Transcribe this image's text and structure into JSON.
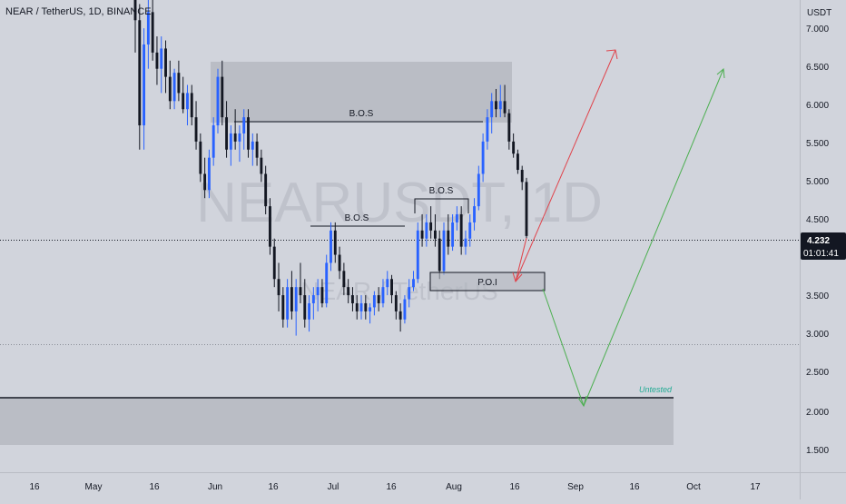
{
  "header": {
    "title": "NEAR / TetherUS, 1D, BINANCE"
  },
  "watermark": {
    "main": "NEARUSDT, 1D",
    "sub": "NEAR / TetherUS"
  },
  "y_axis": {
    "unit": "USDT",
    "ticks": [
      "7.000",
      "6.500",
      "6.000",
      "5.500",
      "5.000",
      "4.500",
      "4.000",
      "3.500",
      "3.000",
      "2.500",
      "2.000",
      "1.500"
    ]
  },
  "x_axis": {
    "ticks": [
      "16",
      "May",
      "16",
      "Jun",
      "16",
      "Jul",
      "16",
      "Aug",
      "16",
      "Sep",
      "16",
      "Oct",
      "17"
    ]
  },
  "price_tag": {
    "price": "4.232",
    "timer": "01:01:41",
    "color": "#131722"
  },
  "annotations": {
    "bos_1": "B.O.S",
    "bos_2": "B.O.S",
    "bos_3": "B.O.S",
    "poi": "P.O.I",
    "untested": "Untested"
  },
  "colors": {
    "up": "#2962ff",
    "down": "#131722",
    "zone": "#b2b5be",
    "red_arrow": "#e0434b",
    "green_arrow": "#4caf50",
    "text_green": "#22ab94"
  },
  "chart_data": {
    "type": "candlestick",
    "symbol": "NEARUSDT",
    "timeframe": "1D",
    "exchange": "BINANCE",
    "ylim": [
      1.3,
      7.15
    ],
    "grid": false,
    "last_price": 4.232,
    "candles": [
      [
        7.3,
        7.6,
        6.5,
        6.9
      ],
      [
        6.9,
        7.1,
        5.3,
        5.6
      ],
      [
        5.6,
        6.8,
        5.3,
        6.6
      ],
      [
        6.6,
        7.2,
        6.3,
        7.0
      ],
      [
        7.0,
        7.3,
        6.4,
        6.5
      ],
      [
        6.5,
        6.7,
        6.1,
        6.3
      ],
      [
        6.3,
        6.7,
        6.0,
        6.55
      ],
      [
        6.55,
        6.65,
        6.0,
        6.2
      ],
      [
        6.2,
        6.4,
        5.8,
        5.9
      ],
      [
        5.9,
        6.3,
        5.8,
        6.25
      ],
      [
        6.25,
        6.4,
        5.9,
        6.0
      ],
      [
        6.0,
        6.2,
        5.75,
        5.8
      ],
      [
        5.8,
        6.1,
        5.6,
        6.0
      ],
      [
        6.0,
        6.1,
        5.6,
        5.7
      ],
      [
        5.7,
        5.9,
        5.3,
        5.4
      ],
      [
        5.4,
        5.5,
        4.9,
        5.0
      ],
      [
        5.0,
        5.2,
        4.7,
        4.8
      ],
      [
        4.8,
        5.3,
        4.7,
        5.2
      ],
      [
        5.2,
        5.7,
        5.1,
        5.6
      ],
      [
        5.6,
        6.3,
        5.5,
        6.2
      ],
      [
        6.2,
        6.4,
        5.6,
        5.7
      ],
      [
        5.7,
        5.9,
        5.2,
        5.3
      ],
      [
        5.3,
        5.6,
        5.1,
        5.5
      ],
      [
        5.5,
        5.8,
        5.3,
        5.4
      ],
      [
        5.4,
        5.6,
        5.15,
        5.5
      ],
      [
        5.5,
        5.8,
        5.3,
        5.7
      ],
      [
        5.7,
        5.8,
        5.2,
        5.3
      ],
      [
        5.3,
        5.5,
        5.1,
        5.4
      ],
      [
        5.4,
        5.5,
        5.1,
        5.2
      ],
      [
        5.2,
        5.3,
        4.9,
        5.0
      ],
      [
        5.0,
        5.1,
        4.5,
        4.6
      ],
      [
        4.6,
        4.7,
        4.0,
        4.1
      ],
      [
        4.1,
        4.2,
        3.6,
        3.7
      ],
      [
        3.7,
        3.9,
        3.3,
        3.5
      ],
      [
        3.5,
        3.6,
        3.1,
        3.2
      ],
      [
        3.2,
        3.7,
        3.1,
        3.6
      ],
      [
        3.6,
        3.8,
        3.2,
        3.3
      ],
      [
        3.3,
        3.7,
        3.0,
        3.6
      ],
      [
        3.6,
        3.9,
        3.4,
        3.5
      ],
      [
        3.5,
        3.7,
        3.1,
        3.2
      ],
      [
        3.2,
        3.5,
        3.05,
        3.4
      ],
      [
        3.4,
        3.6,
        3.2,
        3.5
      ],
      [
        3.5,
        3.7,
        3.3,
        3.6
      ],
      [
        3.6,
        3.7,
        3.35,
        3.4
      ],
      [
        3.4,
        4.0,
        3.35,
        3.9
      ],
      [
        3.9,
        4.4,
        3.8,
        4.3
      ],
      [
        4.3,
        4.4,
        3.9,
        4.0
      ],
      [
        4.0,
        4.1,
        3.7,
        3.8
      ],
      [
        3.8,
        3.9,
        3.5,
        3.6
      ],
      [
        3.6,
        3.7,
        3.4,
        3.5
      ],
      [
        3.5,
        3.6,
        3.3,
        3.4
      ],
      [
        3.4,
        3.5,
        3.2,
        3.3
      ],
      [
        3.3,
        3.5,
        3.2,
        3.4
      ],
      [
        3.4,
        3.5,
        3.2,
        3.3
      ],
      [
        3.3,
        3.4,
        3.15,
        3.35
      ],
      [
        3.35,
        3.55,
        3.25,
        3.5
      ],
      [
        3.5,
        3.6,
        3.3,
        3.4
      ],
      [
        3.4,
        3.7,
        3.35,
        3.6
      ],
      [
        3.6,
        3.8,
        3.5,
        3.7
      ],
      [
        3.7,
        3.75,
        3.4,
        3.5
      ],
      [
        3.5,
        3.55,
        3.2,
        3.3
      ],
      [
        3.3,
        3.4,
        3.05,
        3.2
      ],
      [
        3.2,
        3.5,
        3.15,
        3.45
      ],
      [
        3.45,
        3.7,
        3.35,
        3.6
      ],
      [
        3.6,
        3.8,
        3.55,
        3.7
      ],
      [
        3.7,
        4.4,
        3.65,
        4.3
      ],
      [
        4.3,
        4.5,
        4.1,
        4.2
      ],
      [
        4.2,
        4.5,
        4.1,
        4.4
      ],
      [
        4.4,
        4.6,
        4.2,
        4.3
      ],
      [
        4.3,
        4.5,
        4.1,
        4.2
      ],
      [
        4.2,
        4.3,
        3.7,
        3.8
      ],
      [
        3.8,
        4.4,
        3.75,
        4.3
      ],
      [
        4.3,
        4.5,
        4.0,
        4.1
      ],
      [
        4.1,
        4.5,
        4.05,
        4.4
      ],
      [
        4.4,
        4.6,
        4.3,
        4.5
      ],
      [
        4.5,
        4.6,
        4.0,
        4.1
      ],
      [
        4.1,
        4.3,
        4.0,
        4.2
      ],
      [
        4.2,
        4.5,
        4.1,
        4.4
      ],
      [
        4.4,
        4.7,
        4.3,
        4.6
      ],
      [
        4.6,
        5.1,
        4.55,
        5.0
      ],
      [
        5.0,
        5.5,
        4.9,
        5.4
      ],
      [
        5.4,
        5.8,
        5.3,
        5.7
      ],
      [
        5.7,
        6.0,
        5.5,
        5.9
      ],
      [
        5.9,
        6.05,
        5.7,
        5.8
      ],
      [
        5.8,
        6.1,
        5.7,
        5.9
      ],
      [
        5.9,
        6.1,
        5.7,
        5.75
      ],
      [
        5.75,
        5.8,
        5.3,
        5.4
      ],
      [
        5.4,
        5.5,
        5.2,
        5.25
      ],
      [
        5.25,
        5.3,
        5.0,
        5.05
      ],
      [
        5.05,
        5.1,
        4.8,
        4.9
      ],
      [
        4.9,
        4.95,
        4.2,
        4.232
      ]
    ]
  }
}
